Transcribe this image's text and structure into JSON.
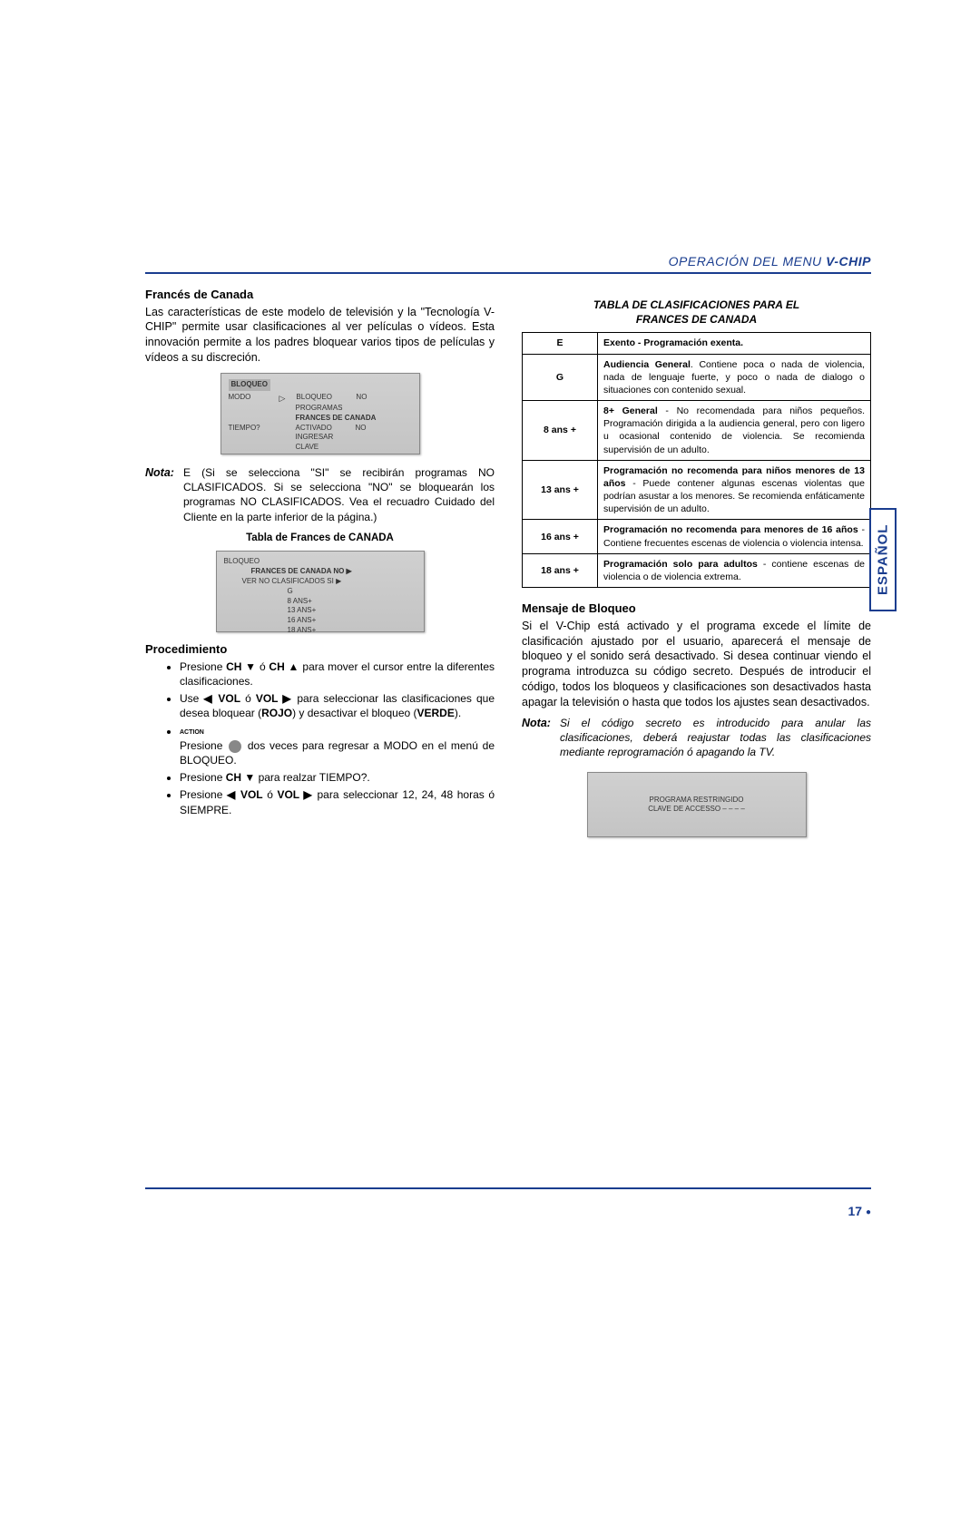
{
  "header": {
    "left": "OPERACIÓN DEL MENU",
    "right": "V-CHIP"
  },
  "left_col": {
    "h1": "Francés de Canada",
    "intro": "Las características de este modelo de televisión y la \"Tecnología V-CHIP\" permite usar clasificaciones al ver películas o vídeos. Esta innovación permite a los padres bloquear varios tipos de películas y vídeos a su discreción.",
    "shot1": {
      "title": "BLOQUEO",
      "r1a": "MODO",
      "r1b": "BLOQUEO",
      "r1c": "NO",
      "r2": "PROGRAMAS",
      "r3": "FRANCES DE CANADA",
      "r4a": "TIEMPO?",
      "r4b": "ACTIVADO",
      "r4c": "NO",
      "r5": "INGRESAR",
      "r6": "CLAVE"
    },
    "nota_label": "Nota:",
    "nota_text": "E (Si se selecciona \"SI\" se recibirán programas NO CLASIFICADOS. Si se selecciona \"NO\" se bloquearán los programas NO CLASIFICADOS. Vea el recuadro Cuidado del Cliente en la parte inferior de la página.)",
    "caption1": "Tabla de Frances de CANADA",
    "shot2": {
      "title": "BLOQUEO",
      "r1": "FRANCES DE CANADA   NO ▶",
      "r2": "VER NO CLASIFICADOS     SI ▶",
      "l1": "G",
      "l2": "8   ANS+",
      "l3": "13 ANS+",
      "l4": "16 ANS+",
      "l5": "18 ANS+"
    },
    "h2": "Procedimiento",
    "action_label": "ACTION",
    "li1a": "Presione ",
    "li1b": "CH ▼",
    "li1c": " ó ",
    "li1d": "CH ▲",
    "li1e": " para mover el cursor entre la diferentes clasificaciones.",
    "li2a": "Use ",
    "li2b": "◀ VOL",
    "li2c": " ó ",
    "li2d": "VOL ▶",
    "li2e": " para seleccionar las clasificaciones que desea bloquear (",
    "li2f": "ROJO",
    "li2g": ") y desactivar el bloqueo (",
    "li2h": "VERDE",
    "li2i": ").",
    "li3a": "Presione  ",
    "li3b": "  dos veces para regresar a MODO en el menú de BLOQUEO.",
    "li4a": "Presione ",
    "li4b": "CH ▼",
    "li4c": " para realzar TIEMPO?.",
    "li5a": "Presione ",
    "li5b": "◀ VOL",
    "li5c": " ó ",
    "li5d": "VOL ▶",
    "li5e": " para seleccionar 12, 24, 48 horas ó SIEMPRE."
  },
  "right_col": {
    "table_caption1": "TABLA DE CLASIFICACIONES PARA EL",
    "table_caption2": "FRANCES DE CANADA",
    "rows": [
      {
        "code": "E",
        "desc_bold": "Exento - Programación exenta.",
        "desc_rest": ""
      },
      {
        "code": "G",
        "desc_bold": "Audiencia General",
        "desc_rest": ". Contiene poca o nada de violencia, nada de lenguaje fuerte, y poco o nada de dialogo o situaciones con contenido sexual."
      },
      {
        "code": "8 ans +",
        "desc_bold": "8+ General",
        "desc_rest": " - No recomendada para niños pequeños. Programación dirigida a la audiencia general, pero con ligero u ocasional contenido de violencia. Se recomienda supervisión de un adulto."
      },
      {
        "code": "13 ans +",
        "desc_bold": "Programación no recomenda para niños menores de 13 años",
        "desc_rest": " - Puede contener algunas escenas violentas que podrían asustar a los menores. Se recomienda enfáticamente supervisión de un adulto."
      },
      {
        "code": "16 ans +",
        "desc_bold": "Programación no recomenda para menores de 16 años",
        "desc_rest": " - Contiene frecuentes escenas de violencia o violencia intensa."
      },
      {
        "code": "18 ans +",
        "desc_bold": "Programación solo para adultos",
        "desc_rest": " - contiene escenas de violencia o de violencia extrema."
      }
    ],
    "h1": "Mensaje de Bloqueo",
    "p1": "Si el  V-Chip está activado y el programa excede el límite de clasificación ajustado por el usuario, aparecerá el mensaje de bloqueo y el sonido será desactivado. Si desea continuar viendo el programa introduzca su código secreto. Después de introducir el código, todos los bloqueos y clasificaciones son desactivados hasta apagar la televisión o  hasta que todos los ajustes sean desactivados.",
    "nota_label": "Nota:",
    "nota_text": "Si el código secreto es introducido para anular las clasificaciones, deberá reajustar todas las clasificaciones mediante reprogramación ó apagando la TV.",
    "lockshot_l1": "PROGRAMA RESTRINGIDO",
    "lockshot_l2": "CLAVE DE ACCESSO  – – – –"
  },
  "side_tab": "ESPAÑOL",
  "page_number": "17"
}
